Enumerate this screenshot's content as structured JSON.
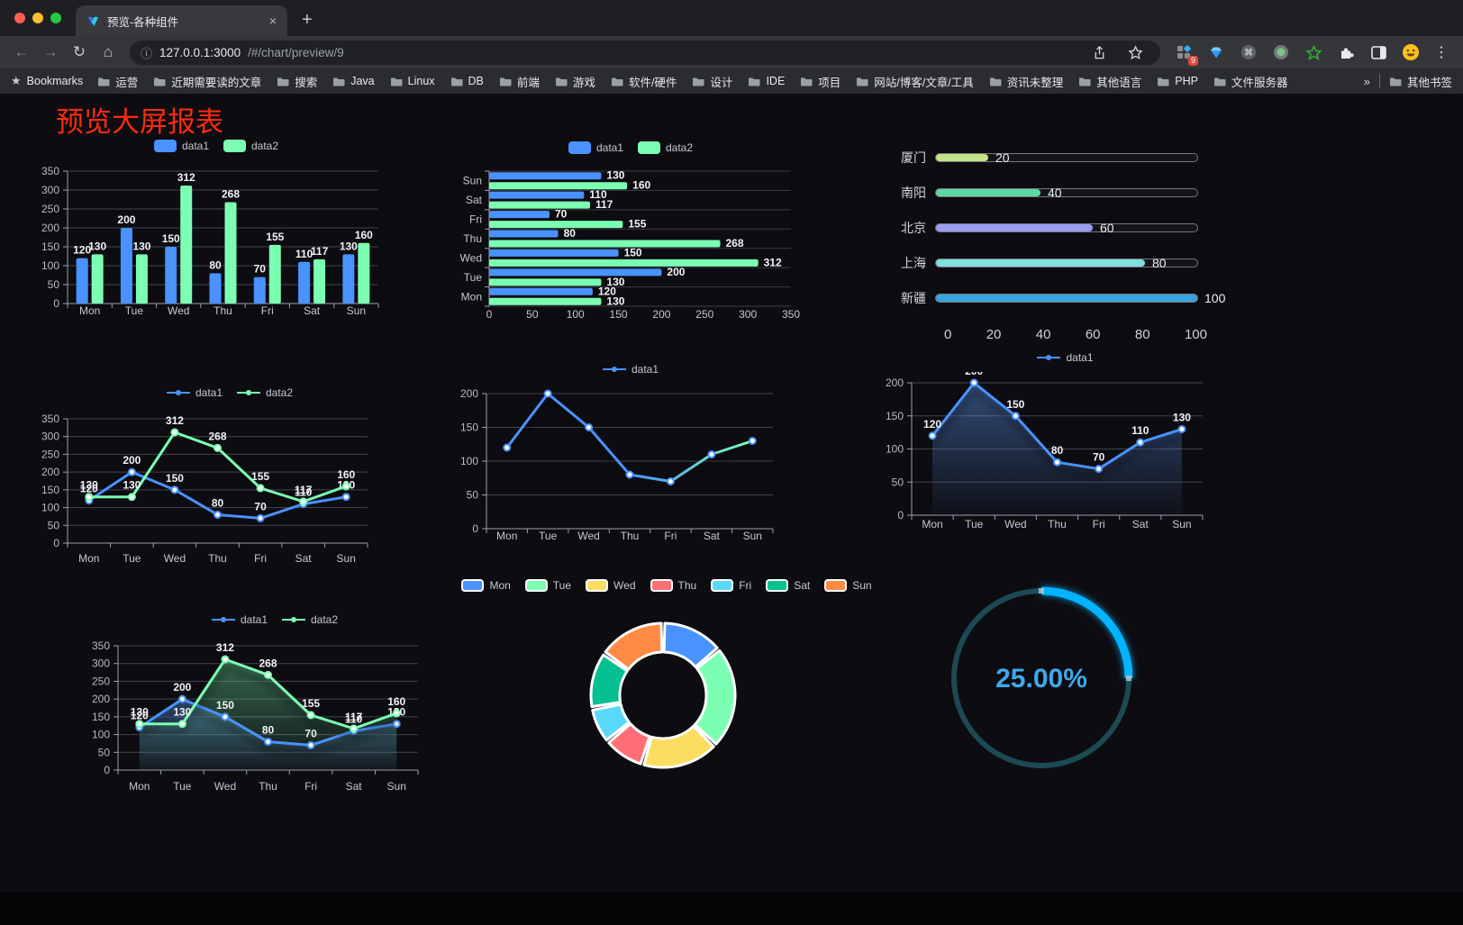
{
  "browser": {
    "tab": {
      "title": "预览-各种组件",
      "close": "×",
      "new_tab": "+"
    },
    "address": {
      "host": "127.0.0.1:3000",
      "path": "/#/chart/preview/9"
    },
    "extension_badge": "9",
    "bookmarks_bar": {
      "root_label": "Bookmarks",
      "folders": [
        "运营",
        "近期需要读的文章",
        "搜索",
        "Java",
        "Linux",
        "DB",
        "前端",
        "游戏",
        "软件/硬件",
        "设计",
        "IDE",
        "项目",
        "网站/博客/文章/工具",
        "资讯未整理",
        "其他语言",
        "PHP",
        "文件服务器"
      ],
      "overflow": "»",
      "other_bookmarks": "其他书签"
    }
  },
  "page": {
    "title": "预览大屏报表",
    "title_color": "#fb2b10",
    "background": "#0d0c11"
  },
  "chart_data": [
    {
      "id": "bar-vertical",
      "type": "bar",
      "categories": [
        "Mon",
        "Tue",
        "Wed",
        "Thu",
        "Fri",
        "Sat",
        "Sun"
      ],
      "series": [
        {
          "name": "data1",
          "color": "#4992ff",
          "values": [
            120,
            200,
            150,
            80,
            70,
            110,
            130
          ]
        },
        {
          "name": "data2",
          "color": "#7cffb2",
          "values": [
            130,
            130,
            312,
            268,
            155,
            117,
            160
          ]
        }
      ],
      "ylim": [
        0,
        350
      ],
      "ystep": 50,
      "legend_position": "top",
      "grid": true
    },
    {
      "id": "bar-horizontal",
      "type": "bar",
      "orientation": "horizontal",
      "categories": [
        "Mon",
        "Tue",
        "Wed",
        "Thu",
        "Fri",
        "Sat",
        "Sun"
      ],
      "series": [
        {
          "name": "data1",
          "color": "#4992ff",
          "values": [
            120,
            200,
            150,
            80,
            70,
            110,
            130
          ]
        },
        {
          "name": "data2",
          "color": "#7cffb2",
          "values": [
            130,
            130,
            312,
            268,
            155,
            117,
            160
          ]
        }
      ],
      "xlim": [
        0,
        350
      ],
      "xstep": 50,
      "legend_position": "top"
    },
    {
      "id": "city-progress",
      "type": "bar",
      "orientation": "horizontal",
      "categories": [
        "厦门",
        "南阳",
        "北京",
        "上海",
        "新疆"
      ],
      "values": [
        20,
        40,
        60,
        80,
        100
      ],
      "colors": [
        "#c3e588",
        "#5fd8a6",
        "#999df1",
        "#7fdfdd",
        "#38a5de"
      ],
      "xlim": [
        0,
        100
      ],
      "xticks": [
        0,
        20,
        40,
        60,
        80,
        100
      ]
    },
    {
      "id": "line-two-series",
      "type": "line",
      "categories": [
        "Mon",
        "Tue",
        "Wed",
        "Thu",
        "Fri",
        "Sat",
        "Sun"
      ],
      "series": [
        {
          "name": "data1",
          "color": "#4992ff",
          "values": [
            120,
            200,
            150,
            80,
            70,
            110,
            130
          ]
        },
        {
          "name": "data2",
          "color": "#7cffb2",
          "values": [
            130,
            130,
            312,
            268,
            155,
            117,
            160
          ]
        }
      ],
      "ylim": [
        0,
        350
      ],
      "ystep": 50,
      "point_labels": true
    },
    {
      "id": "line-gradient",
      "type": "line",
      "categories": [
        "Mon",
        "Tue",
        "Wed",
        "Thu",
        "Fri",
        "Sat",
        "Sun"
      ],
      "series": [
        {
          "name": "data1",
          "color": "#4992ff",
          "color_end": "#7cffb2",
          "values": [
            120,
            200,
            150,
            80,
            70,
            110,
            130
          ]
        }
      ],
      "ylim": [
        0,
        200
      ],
      "ystep": 50,
      "point_labels": false
    },
    {
      "id": "area-single",
      "type": "area",
      "categories": [
        "Mon",
        "Tue",
        "Wed",
        "Thu",
        "Fri",
        "Sat",
        "Sun"
      ],
      "series": [
        {
          "name": "data1",
          "color": "#4992ff",
          "values": [
            120,
            200,
            150,
            80,
            70,
            110,
            130
          ]
        }
      ],
      "ylim": [
        0,
        200
      ],
      "ystep": 50,
      "point_labels": true
    },
    {
      "id": "area-two-series",
      "type": "area",
      "categories": [
        "Mon",
        "Tue",
        "Wed",
        "Thu",
        "Fri",
        "Sat",
        "Sun"
      ],
      "series": [
        {
          "name": "data1",
          "color": "#4992ff",
          "values": [
            120,
            200,
            150,
            80,
            70,
            110,
            130
          ]
        },
        {
          "name": "data2",
          "color": "#7cffb2",
          "values": [
            130,
            130,
            312,
            268,
            155,
            117,
            160
          ]
        }
      ],
      "ylim": [
        0,
        350
      ],
      "ystep": 50,
      "point_labels": true
    },
    {
      "id": "donut",
      "type": "pie",
      "categories": [
        "Mon",
        "Tue",
        "Wed",
        "Thu",
        "Fri",
        "Sat",
        "Sun"
      ],
      "values": [
        120,
        200,
        150,
        80,
        70,
        110,
        130
      ],
      "colors": [
        "#4992ff",
        "#7cffb2",
        "#fddd60",
        "#ff6e76",
        "#58d9f9",
        "#05c091",
        "#ff8a45"
      ],
      "inner_radius_ratio": 0.6,
      "border_color": "#ffffff"
    },
    {
      "id": "gauge",
      "type": "gauge",
      "percent": 25,
      "label": "25.00%",
      "arc_color": "#00b4ff",
      "track_color": "#1c4a54",
      "text_color": "#3fa9ea"
    }
  ]
}
